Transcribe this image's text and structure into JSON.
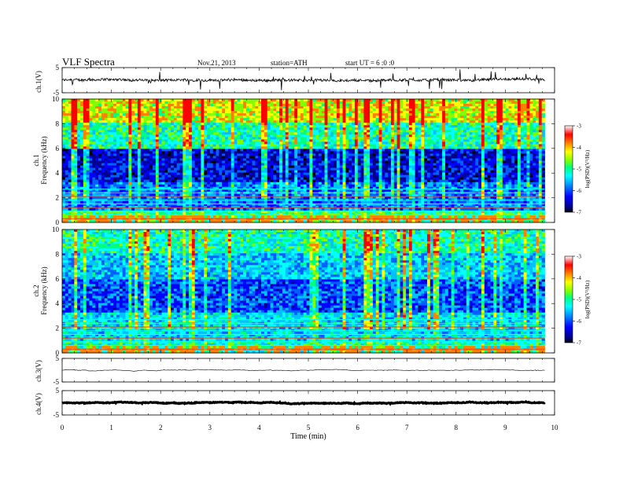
{
  "header": {
    "title": "VLF  Spectra",
    "date": "Nov.21, 2013",
    "station": "station=ATH",
    "start": "start  UT  =   6  :0  :0"
  },
  "chart_data": [
    {
      "id": "ch1-waveform",
      "type": "line",
      "ylabel": "ch.1(V)",
      "yticks": [
        "5",
        "-5"
      ],
      "ylim": [
        -5,
        5
      ],
      "xlim": [
        0,
        10
      ],
      "data_end_min": 9.8,
      "baseline_v": 0.0,
      "noise_amplitude_v": 1.0,
      "spike_amplitude_v": 4.0
    },
    {
      "id": "ch1-spectrogram",
      "type": "heatmap",
      "ylabel_channel": "ch.1",
      "ylabel": "Frequency  (kHz)",
      "yticks": [
        "10",
        "8",
        "6",
        "4",
        "2",
        "0"
      ],
      "ylim": [
        0,
        10
      ],
      "xlim": [
        0,
        10
      ],
      "data_end_min": 9.8,
      "colorbar": {
        "label": "log(PSD)(V²/Hz)",
        "ticks": [
          "-3",
          "-4",
          "-5",
          "-6",
          "-7"
        ],
        "range": [
          -7,
          -3
        ],
        "colors": [
          "#000000",
          "#00008b",
          "#0000ff",
          "#0080ff",
          "#00ffff",
          "#00ff80",
          "#80ff00",
          "#ffff00",
          "#ff8000",
          "#ff0000",
          "#ffffff"
        ]
      }
    },
    {
      "id": "ch2-spectrogram",
      "type": "heatmap",
      "ylabel_channel": "ch.2",
      "ylabel": "Frequency  (kHz)",
      "yticks": [
        "10",
        "8",
        "6",
        "4",
        "2",
        "0"
      ],
      "ylim": [
        0,
        10
      ],
      "xlim": [
        0,
        10
      ],
      "data_end_min": 9.8,
      "colorbar": {
        "label": "log(PSD)(V²/Hz)",
        "ticks": [
          "-3",
          "-4",
          "-5",
          "-6",
          "-7"
        ],
        "range": [
          -7,
          -3
        ],
        "colors": [
          "#000000",
          "#00008b",
          "#0000ff",
          "#0080ff",
          "#00ffff",
          "#00ff80",
          "#80ff00",
          "#ffff00",
          "#ff8000",
          "#ff0000",
          "#ffffff"
        ]
      }
    },
    {
      "id": "ch3-waveform",
      "type": "line",
      "ylabel": "ch.3(V)",
      "yticks": [
        "5",
        "-5"
      ],
      "ylim": [
        -5,
        5
      ],
      "xlim": [
        0,
        10
      ],
      "data_end_min": 9.8,
      "baseline_v": 0.0,
      "noise_amplitude_v": 0.05,
      "spike_amplitude_v": 0.2
    },
    {
      "id": "ch4-waveform",
      "type": "line",
      "ylabel": "ch.4(V)",
      "yticks": [
        "5",
        "-5"
      ],
      "ylim": [
        -5,
        5
      ],
      "xlim": [
        0,
        10
      ],
      "data_end_min": 9.8,
      "baseline_v": 0.0,
      "noise_amplitude_v": 0.25,
      "spike_amplitude_v": 0.3
    }
  ],
  "xaxis": {
    "label": "Time  (min)",
    "ticks": [
      "0",
      "1",
      "2",
      "3",
      "4",
      "5",
      "6",
      "7",
      "8",
      "9",
      "10"
    ]
  }
}
